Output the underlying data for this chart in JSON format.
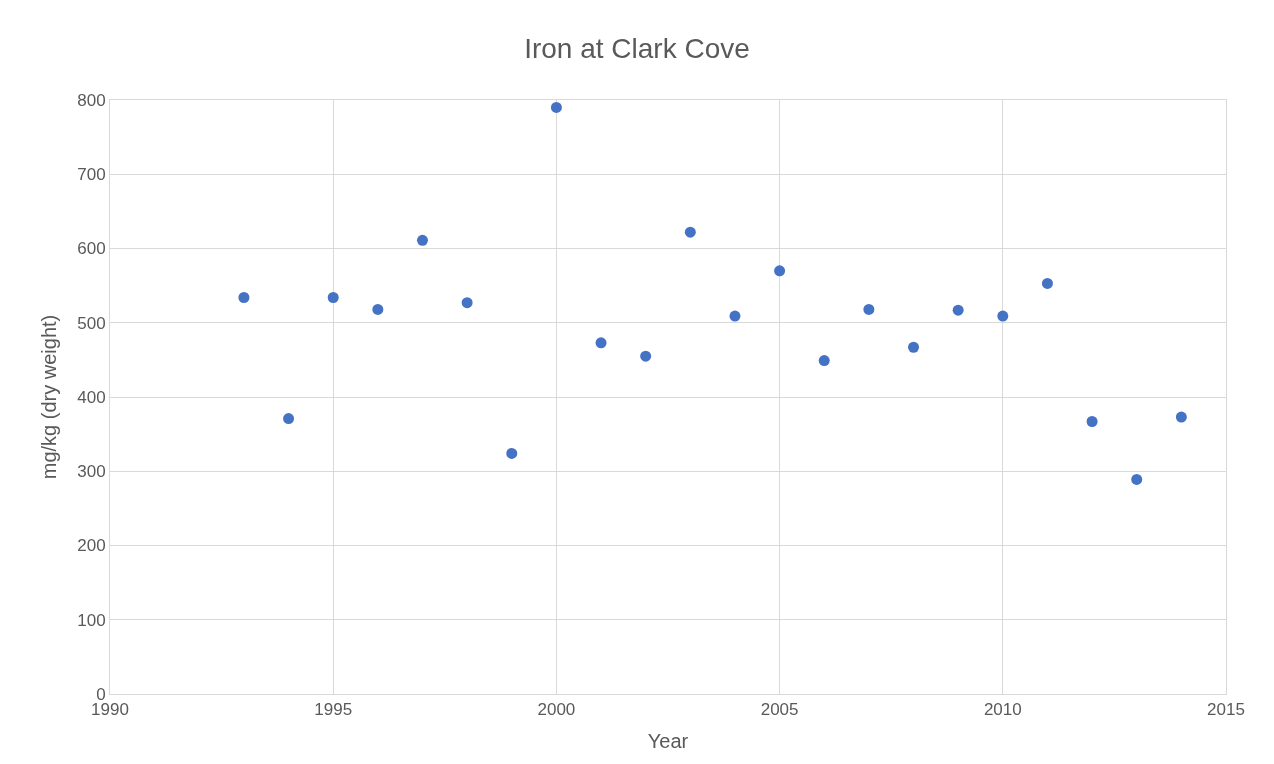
{
  "chart_data": {
    "type": "scatter",
    "title": "Iron at Clark Cove",
    "xlabel": "Year",
    "ylabel": "mg/kg (dry weight)",
    "x": [
      1993,
      1994,
      1995,
      1996,
      1997,
      1998,
      1999,
      2000,
      2001,
      2002,
      2003,
      2004,
      2005,
      2006,
      2007,
      2008,
      2009,
      2010,
      2011,
      2012,
      2013,
      2014
    ],
    "series": [
      {
        "color": "#4472c4",
        "values": [
          534,
          371,
          534,
          518,
          611,
          527,
          324,
          790,
          473,
          455,
          622,
          509,
          570,
          449,
          518,
          467,
          517,
          509,
          553,
          367,
          289,
          373
        ]
      }
    ],
    "xlim": [
      1990,
      2015
    ],
    "xticks": [
      1990,
      1995,
      2000,
      2005,
      2010,
      2015
    ],
    "ylim": [
      0,
      800
    ],
    "yticks": [
      0,
      100,
      200,
      300,
      400,
      500,
      600,
      700,
      800
    ],
    "grid": true,
    "marker": "circle"
  }
}
